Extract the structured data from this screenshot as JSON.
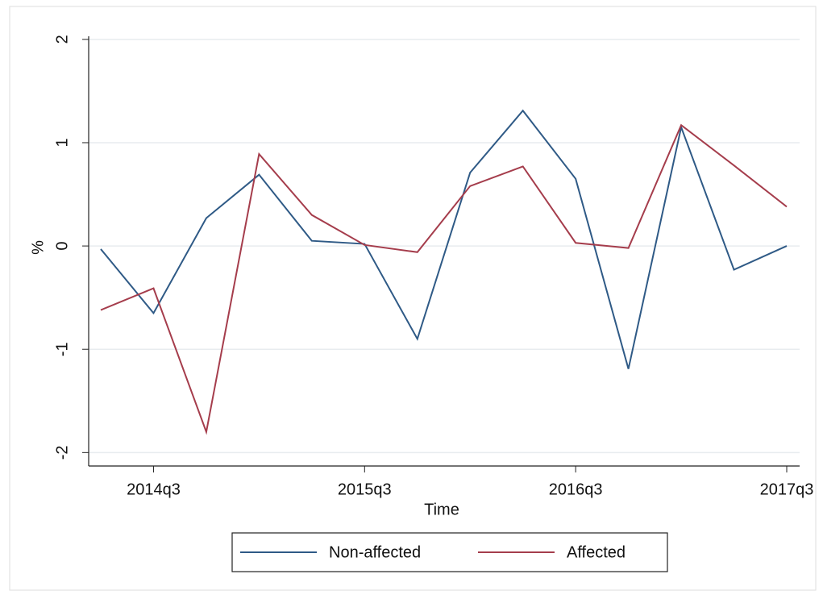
{
  "chart_data": {
    "type": "line",
    "x_label": "Time",
    "y_label": "%",
    "categories": [
      null,
      "2014q3",
      null,
      null,
      null,
      "2015q3",
      null,
      null,
      null,
      "2016q3",
      null,
      null,
      null,
      "2017q3"
    ],
    "series": [
      {
        "name": "Non-affected",
        "color": "#2f5a86",
        "values": [
          -0.03,
          -0.65,
          0.27,
          0.69,
          0.05,
          0.02,
          -0.9,
          0.71,
          1.31,
          0.65,
          -1.19,
          1.15,
          -0.23,
          0.0
        ]
      },
      {
        "name": "Affected",
        "color": "#a53d4c",
        "values": [
          -0.62,
          -0.41,
          -1.8,
          0.89,
          0.3,
          0.01,
          -0.06,
          0.58,
          0.77,
          0.03,
          -0.02,
          1.17,
          0.78,
          0.38
        ]
      }
    ],
    "ylim": [
      -2.13,
      2.03
    ],
    "yticks": [
      -2,
      -1,
      0,
      1,
      2
    ],
    "grid": true,
    "legend": "bottom"
  }
}
